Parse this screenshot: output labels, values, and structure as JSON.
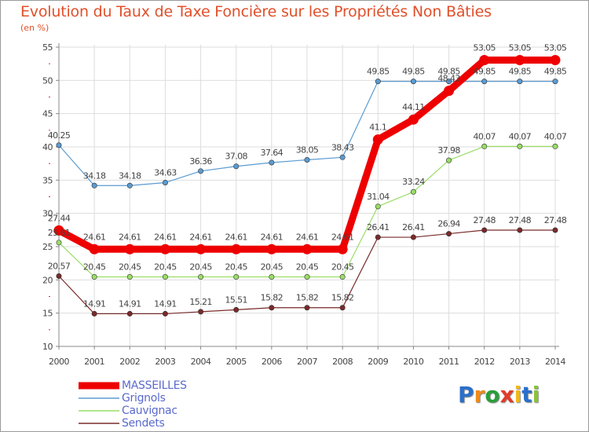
{
  "title": "Evolution du Taux de Taxe Foncière sur les Propriétés Non Bâties",
  "unit_label": "(en %)",
  "brand": {
    "letters": [
      "P",
      "r",
      "o",
      "x",
      "i",
      "t",
      "i"
    ],
    "colors": [
      "#2a6fc9",
      "#f08a1a",
      "#2a9e3a",
      "#e23a2a",
      "#f0b81a",
      "#2a6fc9",
      "#8ac43a"
    ]
  },
  "chart_data": {
    "type": "line",
    "title": "Evolution du Taux de Taxe Foncière sur les Propriétés Non Bâties",
    "ylabel": "(en %)",
    "xlabel": "",
    "ylim": [
      10,
      55
    ],
    "yticks": [
      "10",
      "15",
      "20",
      "25",
      "30",
      "35",
      "40",
      "45",
      "50",
      "55"
    ],
    "categories": [
      "2000",
      "2001",
      "2002",
      "2003",
      "2004",
      "2005",
      "2006",
      "2007",
      "2008",
      "2009",
      "2010",
      "2011",
      "2012",
      "2013",
      "2014"
    ],
    "series": [
      {
        "name": "MASSEILLES",
        "color": "#ee0000",
        "values": [
          27.44,
          24.61,
          24.61,
          24.61,
          24.61,
          24.61,
          24.61,
          24.61,
          24.61,
          41.1,
          44.11,
          48.43,
          53.05,
          53.05,
          53.05
        ],
        "labels": [
          "27.44",
          "24.61",
          "24.61",
          "24.61",
          "24.61",
          "24.61",
          "24.61",
          "24.61",
          "24.61",
          "41.1",
          "44.11",
          "48.43",
          "53.05",
          "53.05",
          "53.05"
        ]
      },
      {
        "name": "Grignols",
        "color": "#5b9bd1",
        "values": [
          40.25,
          34.18,
          34.18,
          34.63,
          36.36,
          37.08,
          37.64,
          38.05,
          38.43,
          49.85,
          49.85,
          49.85,
          49.85,
          49.85,
          49.85
        ],
        "labels": [
          "40.25",
          "34.18",
          "34.18",
          "34.63",
          "36.36",
          "37.08",
          "37.64",
          "38.05",
          "38.43",
          "49.85",
          "49.85",
          "49.85",
          "49.85",
          "49.85",
          "49.85"
        ]
      },
      {
        "name": "Cauvignac",
        "color": "#99dd66",
        "values": [
          25.61,
          20.45,
          20.45,
          20.45,
          20.45,
          20.45,
          20.45,
          20.45,
          20.45,
          31.04,
          33.24,
          37.98,
          40.07,
          40.07,
          40.07
        ],
        "labels": [
          "25.61",
          "20.45",
          "20.45",
          "20.45",
          "20.45",
          "20.45",
          "20.45",
          "20.45",
          "20.45",
          "31.04",
          "33.24",
          "37.98",
          "40.07",
          "40.07",
          "40.07"
        ]
      },
      {
        "name": "Sendets",
        "color": "#7a2a2a",
        "values": [
          20.57,
          14.91,
          14.91,
          14.91,
          15.21,
          15.51,
          15.82,
          15.82,
          15.82,
          26.41,
          26.41,
          26.94,
          27.48,
          27.48,
          27.48
        ],
        "labels": [
          "20.57",
          "14.91",
          "14.91",
          "14.91",
          "15.21",
          "15.51",
          "15.82",
          "15.82",
          "15.82",
          "26.41",
          "26.41",
          "26.94",
          "27.48",
          "27.48",
          "27.48"
        ]
      }
    ]
  }
}
